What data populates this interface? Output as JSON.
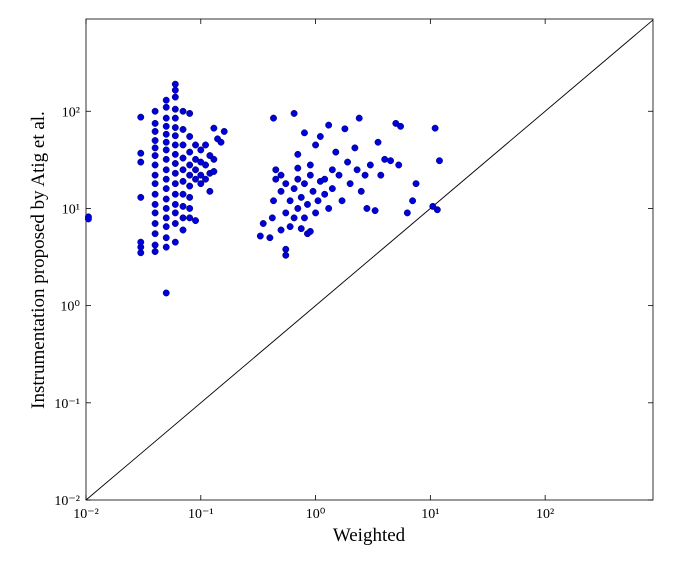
{
  "chart_data": {
    "type": "scatter",
    "xlabel": "Weighted",
    "ylabel": "Instrumentation proposed by Atig et al.",
    "log_x": true,
    "log_y": true,
    "color": "#0000d8",
    "xlim": [
      0.01,
      870
    ],
    "ylim": [
      0.01,
      890
    ],
    "xticks": [
      {
        "value": 0.01,
        "label": "10⁻²"
      },
      {
        "value": 0.1,
        "label": "10⁻¹"
      },
      {
        "value": 1,
        "label": "10⁰"
      },
      {
        "value": 10,
        "label": "10¹"
      },
      {
        "value": 100,
        "label": "10²"
      }
    ],
    "yticks": [
      {
        "value": 0.01,
        "label": "10⁻²"
      },
      {
        "value": 0.1,
        "label": "10⁻¹"
      },
      {
        "value": 1,
        "label": "10⁰"
      },
      {
        "value": 10,
        "label": "10¹"
      },
      {
        "value": 100,
        "label": "10²"
      }
    ],
    "reference_line": {
      "x": [
        0.01,
        870
      ],
      "y": [
        0.01,
        870
      ]
    },
    "x": [
      0.0105,
      0.0105,
      0.03,
      0.03,
      0.03,
      0.03,
      0.03,
      0.03,
      0.03,
      0.04,
      0.04,
      0.04,
      0.04,
      0.04,
      0.04,
      0.04,
      0.04,
      0.04,
      0.04,
      0.04,
      0.04,
      0.04,
      0.04,
      0.04,
      0.04,
      0.05,
      0.05,
      0.05,
      0.05,
      0.05,
      0.05,
      0.05,
      0.05,
      0.05,
      0.05,
      0.05,
      0.05,
      0.05,
      0.05,
      0.05,
      0.05,
      0.05,
      0.05,
      0.06,
      0.06,
      0.06,
      0.06,
      0.06,
      0.06,
      0.06,
      0.06,
      0.06,
      0.06,
      0.06,
      0.06,
      0.06,
      0.06,
      0.06,
      0.06,
      0.06,
      0.07,
      0.07,
      0.07,
      0.07,
      0.07,
      0.07,
      0.07,
      0.07,
      0.07,
      0.07,
      0.08,
      0.08,
      0.08,
      0.08,
      0.08,
      0.08,
      0.08,
      0.08,
      0.08,
      0.09,
      0.09,
      0.09,
      0.09,
      0.09,
      0.1,
      0.1,
      0.1,
      0.1,
      0.11,
      0.11,
      0.11,
      0.12,
      0.12,
      0.12,
      0.13,
      0.13,
      0.13,
      0.14,
      0.15,
      0.16,
      0.33,
      0.35,
      0.4,
      0.42,
      0.43,
      0.43,
      0.45,
      0.45,
      0.5,
      0.5,
      0.5,
      0.55,
      0.55,
      0.55,
      0.55,
      0.6,
      0.6,
      0.65,
      0.65,
      0.65,
      0.7,
      0.7,
      0.7,
      0.7,
      0.75,
      0.75,
      0.8,
      0.8,
      0.8,
      0.85,
      0.85,
      0.9,
      0.9,
      0.9,
      0.95,
      1.0,
      1.0,
      1.05,
      1.1,
      1.1,
      1.2,
      1.2,
      1.3,
      1.3,
      1.4,
      1.4,
      1.5,
      1.6,
      1.7,
      1.8,
      1.9,
      2.0,
      2.2,
      2.3,
      2.4,
      2.5,
      2.7,
      2.8,
      3.0,
      3.3,
      3.5,
      3.7,
      4.0,
      4.5,
      5,
      5.3,
      5.5,
      6.3,
      7,
      7.5,
      10.5,
      11,
      11.5,
      12
    ],
    "values": [
      8.2,
      7.8,
      3.5,
      4,
      4.5,
      13,
      30,
      37,
      87,
      3.6,
      4.2,
      5.5,
      7,
      9,
      11,
      14,
      18,
      22,
      28,
      35,
      42,
      50,
      62,
      75,
      100,
      1.35,
      4,
      5,
      6.5,
      8,
      10,
      12.5,
      16,
      20,
      25,
      32,
      40,
      48,
      58,
      70,
      85,
      110,
      130,
      4.5,
      7,
      9,
      11,
      14,
      18,
      23,
      29,
      36,
      45,
      56,
      68,
      85,
      105,
      140,
      165,
      190,
      6,
      8,
      10.5,
      14,
      19,
      25,
      33,
      45,
      65,
      100,
      8,
      10,
      13,
      17,
      22,
      28,
      38,
      55,
      95,
      7.5,
      20,
      25,
      32,
      45,
      18,
      22,
      30,
      40,
      20,
      28,
      45,
      15,
      23,
      35,
      24,
      32,
      67,
      52,
      48,
      62,
      5.2,
      7,
      5,
      8,
      85,
      12,
      20,
      25,
      6,
      15,
      22,
      3.3,
      3.8,
      9,
      18,
      6.5,
      12,
      95,
      8,
      16,
      10,
      20,
      26,
      36,
      6.2,
      13,
      60,
      8,
      18,
      5.5,
      11,
      5.8,
      22,
      28,
      15,
      9,
      45,
      12,
      19,
      55,
      20,
      14,
      72,
      10,
      25,
      16,
      38,
      22,
      12,
      66,
      30,
      18,
      42,
      25,
      85,
      15,
      22,
      10,
      28,
      9.5,
      48,
      22,
      32,
      31,
      75,
      28,
      70,
      9,
      12,
      18,
      10.5,
      67,
      9.7,
      31
    ]
  }
}
